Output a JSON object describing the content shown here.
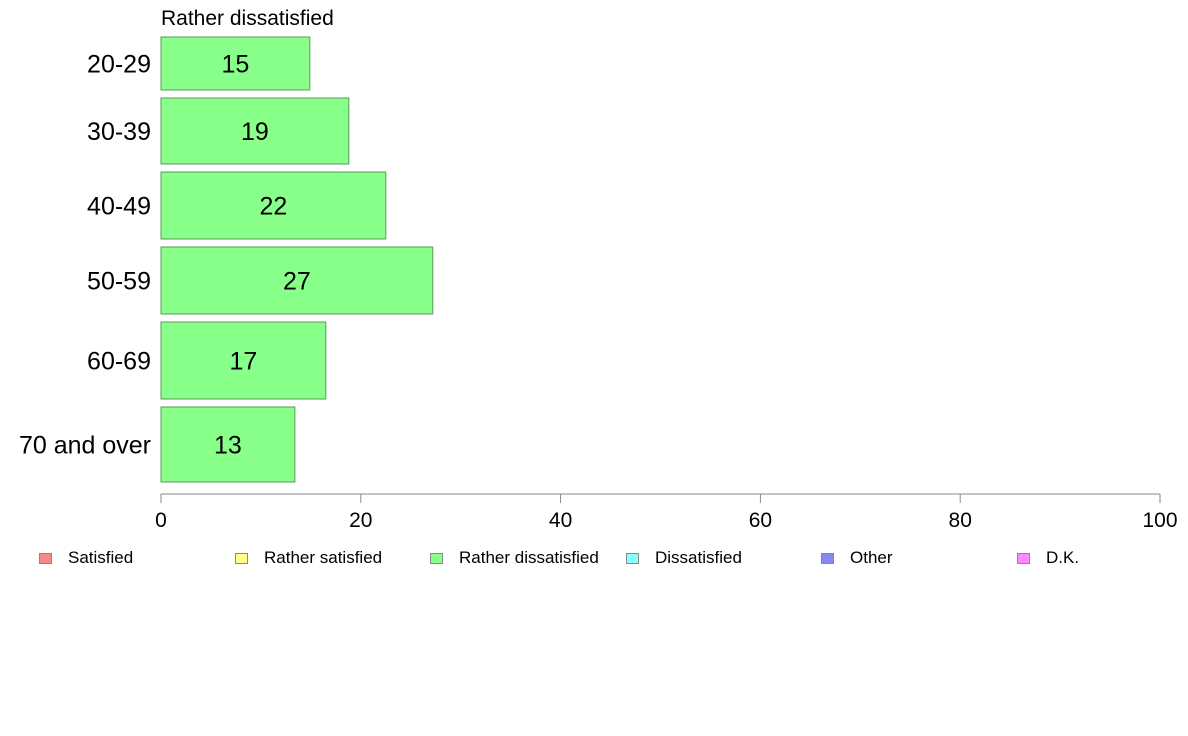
{
  "chart_data": {
    "type": "bar",
    "orientation": "horizontal",
    "title": "Rather dissatisfied",
    "categories": [
      "20-29",
      "30-39",
      "40-49",
      "50-59",
      "60-69",
      "70 and over"
    ],
    "values": [
      15,
      19,
      22,
      27,
      17,
      13
    ],
    "plotted_values": [
      14.9,
      18.8,
      22.5,
      27.2,
      16.5,
      13.4
    ],
    "xlim": [
      0,
      100
    ],
    "xticks": [
      0,
      20,
      40,
      60,
      80,
      100
    ],
    "xlabel": "",
    "ylabel": "",
    "bar_color": "#88ff88",
    "grid": false,
    "legend": {
      "placement": "bottom",
      "items": [
        {
          "label": "Satisfied",
          "color": "#f28a8a"
        },
        {
          "label": "Rather satisfied",
          "color": "#ffff88"
        },
        {
          "label": "Rather dissatisfied",
          "color": "#88ff88"
        },
        {
          "label": "Dissatisfied",
          "color": "#88ffff"
        },
        {
          "label": "Other",
          "color": "#8888ee"
        },
        {
          "label": "D.K.",
          "color": "#ff88ff"
        }
      ]
    }
  }
}
